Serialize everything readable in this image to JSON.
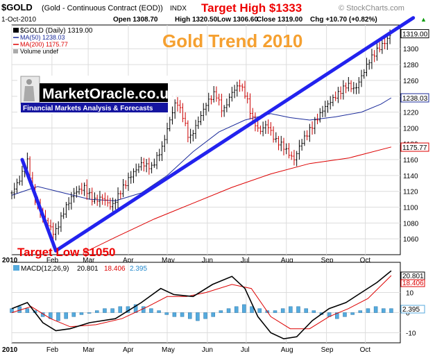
{
  "header": {
    "symbol": "$GOLD",
    "description": "(Gold - Continuous Contract (EOD))",
    "exchange": "INDX",
    "target_high": "Target High $1333",
    "watermark": "© StockCharts.com",
    "date": "1-Oct-2010",
    "open": "Open 1308.70",
    "high": "High 1320.50",
    "low": "Low 1306.60",
    "close": "Close 1319.00",
    "change": "Chg +10.70 (+0.82%)",
    "change_arrow": "▲"
  },
  "legend": {
    "main": "$GOLD (Daily) 1319.00",
    "ma50": "MA(50) 1238.03",
    "ma200": "MA(200) 1175.77",
    "volume": "Volume undef"
  },
  "overlay": {
    "title": "Gold Trend 2010",
    "target_low": "Target Low $1050",
    "logo_name": "MarketOracle.co.uk",
    "logo_tagline": "Financial Markets Analysis & Forecasts"
  },
  "macd_panel": {
    "label_main": "MACD(12,26,9)",
    "label_macd": "20.801",
    "label_signal": "18.406",
    "label_hist": "2.395",
    "y_ticks": [
      "10",
      "0",
      "-10"
    ],
    "right_macd": "20.801",
    "right_signal": "18.406",
    "right_hist": "2.395"
  },
  "colors": {
    "price_up": "#000000",
    "price_down": "#cc0000",
    "ma50": "#1a2a9a",
    "ma200": "#dd0000",
    "trend": "#2222ee",
    "title_orange": "#f5a030",
    "target_red": "#ee0000",
    "macd": "#000000",
    "signal": "#dd0000",
    "hist": "#55aadd"
  },
  "chart_data": [
    {
      "type": "line",
      "title": "Gold Trend 2010",
      "series_name": "$GOLD (Daily)",
      "x_labels": [
        "2010",
        "Feb",
        "Mar",
        "Apr",
        "May",
        "Jun",
        "Jul",
        "Aug",
        "Sep",
        "Oct"
      ],
      "x_start_label": "2010",
      "ylim": [
        1040,
        1330
      ],
      "y_ticks": [
        1060,
        1080,
        1100,
        1120,
        1140,
        1160,
        1180,
        1200,
        1220,
        1240,
        1260,
        1280,
        1300
      ],
      "price_points": [
        {
          "day": 0,
          "value": 1118
        },
        {
          "day": 6,
          "value": 1135
        },
        {
          "day": 12,
          "value": 1158
        },
        {
          "day": 17,
          "value": 1112
        },
        {
          "day": 25,
          "value": 1085
        },
        {
          "day": 33,
          "value": 1066
        },
        {
          "day": 41,
          "value": 1098
        },
        {
          "day": 48,
          "value": 1118
        },
        {
          "day": 56,
          "value": 1125
        },
        {
          "day": 63,
          "value": 1108
        },
        {
          "day": 70,
          "value": 1112
        },
        {
          "day": 77,
          "value": 1100
        },
        {
          "day": 84,
          "value": 1120
        },
        {
          "day": 92,
          "value": 1140
        },
        {
          "day": 100,
          "value": 1155
        },
        {
          "day": 108,
          "value": 1150
        },
        {
          "day": 116,
          "value": 1175
        },
        {
          "day": 122,
          "value": 1210
        },
        {
          "day": 127,
          "value": 1235
        },
        {
          "day": 132,
          "value": 1215
        },
        {
          "day": 137,
          "value": 1185
        },
        {
          "day": 143,
          "value": 1205
        },
        {
          "day": 150,
          "value": 1230
        },
        {
          "day": 157,
          "value": 1245
        },
        {
          "day": 163,
          "value": 1220
        },
        {
          "day": 170,
          "value": 1245
        },
        {
          "day": 176,
          "value": 1255
        },
        {
          "day": 181,
          "value": 1240
        },
        {
          "day": 185,
          "value": 1215
        },
        {
          "day": 191,
          "value": 1195
        },
        {
          "day": 197,
          "value": 1205
        },
        {
          "day": 203,
          "value": 1185
        },
        {
          "day": 209,
          "value": 1178
        },
        {
          "day": 215,
          "value": 1165
        },
        {
          "day": 218,
          "value": 1160
        },
        {
          "day": 223,
          "value": 1180
        },
        {
          "day": 229,
          "value": 1195
        },
        {
          "day": 235,
          "value": 1210
        },
        {
          "day": 241,
          "value": 1225
        },
        {
          "day": 247,
          "value": 1235
        },
        {
          "day": 253,
          "value": 1245
        },
        {
          "day": 259,
          "value": 1255
        },
        {
          "day": 265,
          "value": 1248
        },
        {
          "day": 270,
          "value": 1265
        },
        {
          "day": 276,
          "value": 1285
        },
        {
          "day": 282,
          "value": 1298
        },
        {
          "day": 288,
          "value": 1308
        },
        {
          "day": 293,
          "value": 1319
        }
      ],
      "ma50_points": [
        {
          "day": 0,
          "value": 1115
        },
        {
          "day": 20,
          "value": 1126
        },
        {
          "day": 40,
          "value": 1118
        },
        {
          "day": 60,
          "value": 1110
        },
        {
          "day": 80,
          "value": 1108
        },
        {
          "day": 100,
          "value": 1118
        },
        {
          "day": 120,
          "value": 1140
        },
        {
          "day": 140,
          "value": 1170
        },
        {
          "day": 160,
          "value": 1195
        },
        {
          "day": 180,
          "value": 1210
        },
        {
          "day": 200,
          "value": 1218
        },
        {
          "day": 215,
          "value": 1213
        },
        {
          "day": 230,
          "value": 1210
        },
        {
          "day": 250,
          "value": 1214
        },
        {
          "day": 270,
          "value": 1220
        },
        {
          "day": 285,
          "value": 1230
        },
        {
          "day": 293,
          "value": 1238
        }
      ],
      "ma200_points": [
        {
          "day": 55,
          "value": 1042
        },
        {
          "day": 80,
          "value": 1062
        },
        {
          "day": 110,
          "value": 1085
        },
        {
          "day": 140,
          "value": 1105
        },
        {
          "day": 170,
          "value": 1125
        },
        {
          "day": 200,
          "value": 1142
        },
        {
          "day": 230,
          "value": 1155
        },
        {
          "day": 260,
          "value": 1162
        },
        {
          "day": 293,
          "value": 1176
        }
      ],
      "trendlines": [
        {
          "from": {
            "day": 8,
            "value": 1160
          },
          "to": {
            "day": 34,
            "value": 1045
          }
        },
        {
          "from": {
            "day": 34,
            "value": 1045
          },
          "to": {
            "day": 310,
            "value": 1339
          }
        }
      ],
      "right_labels": {
        "close": "1319.00",
        "ma50": "1238.03",
        "ma200": "1175.77"
      }
    },
    {
      "type": "line",
      "title": "MACD(12,26,9)",
      "ylim": [
        -15,
        25
      ],
      "y_ticks": [
        10,
        0,
        -10
      ],
      "series": [
        {
          "name": "MACD",
          "points": [
            {
              "day": 0,
              "value": 2
            },
            {
              "day": 12,
              "value": 5
            },
            {
              "day": 24,
              "value": -5
            },
            {
              "day": 34,
              "value": -9
            },
            {
              "day": 45,
              "value": -8
            },
            {
              "day": 60,
              "value": -5
            },
            {
              "day": 80,
              "value": -3
            },
            {
              "day": 100,
              "value": 5
            },
            {
              "day": 115,
              "value": 12
            },
            {
              "day": 125,
              "value": 9
            },
            {
              "day": 140,
              "value": 8
            },
            {
              "day": 155,
              "value": 14
            },
            {
              "day": 170,
              "value": 18
            },
            {
              "day": 180,
              "value": 12
            },
            {
              "day": 190,
              "value": -2
            },
            {
              "day": 200,
              "value": -10
            },
            {
              "day": 210,
              "value": -13
            },
            {
              "day": 220,
              "value": -12
            },
            {
              "day": 232,
              "value": -4
            },
            {
              "day": 245,
              "value": 2
            },
            {
              "day": 258,
              "value": 5
            },
            {
              "day": 270,
              "value": 10
            },
            {
              "day": 282,
              "value": 15
            },
            {
              "day": 293,
              "value": 20.801
            }
          ]
        },
        {
          "name": "Signal",
          "points": [
            {
              "day": 0,
              "value": 0
            },
            {
              "day": 15,
              "value": 3
            },
            {
              "day": 30,
              "value": -3
            },
            {
              "day": 45,
              "value": -7
            },
            {
              "day": 65,
              "value": -6
            },
            {
              "day": 85,
              "value": -3
            },
            {
              "day": 105,
              "value": 3
            },
            {
              "day": 120,
              "value": 8
            },
            {
              "day": 135,
              "value": 8
            },
            {
              "day": 150,
              "value": 10
            },
            {
              "day": 170,
              "value": 14
            },
            {
              "day": 185,
              "value": 12
            },
            {
              "day": 200,
              "value": -2
            },
            {
              "day": 215,
              "value": -8
            },
            {
              "day": 230,
              "value": -8
            },
            {
              "day": 245,
              "value": -2
            },
            {
              "day": 260,
              "value": 2
            },
            {
              "day": 275,
              "value": 7
            },
            {
              "day": 293,
              "value": 18.406
            }
          ]
        }
      ],
      "histogram": [
        2,
        3,
        2,
        1,
        -2,
        -3,
        -4,
        -3,
        -2,
        -1,
        0,
        1,
        2,
        2,
        3,
        3,
        4,
        3,
        2,
        1,
        -1,
        -2,
        -2,
        -3,
        -4,
        -3,
        -2,
        1,
        2,
        3,
        4,
        3,
        2,
        1,
        1,
        2,
        3,
        3,
        2,
        1,
        -1,
        -2,
        -3,
        -2,
        -1,
        1,
        2,
        3,
        2,
        2
      ],
      "histogram_last": 2.395
    }
  ]
}
